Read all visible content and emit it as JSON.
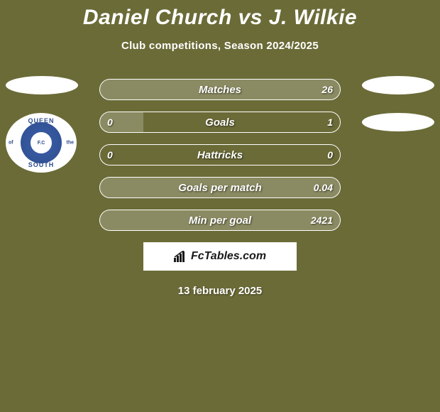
{
  "title": "Daniel Church vs J. Wilkie",
  "subtitle": "Club competitions, Season 2024/2025",
  "brand": "FcTables.com",
  "date": "13 february 2025",
  "crest": {
    "top": "QUEEN",
    "bottom": "SOUTH",
    "left": "of",
    "right": "the",
    "center": "F.C"
  },
  "colors": {
    "background": "#6b6b38",
    "text": "#ffffff",
    "bar_fill": "rgba(255,255,255,0.22)",
    "brand_bg": "#ffffff",
    "brand_text": "#1a1a1a",
    "crest_blue": "#2e4d8f"
  },
  "stats": [
    {
      "label": "Matches",
      "left_val": "",
      "right_val": "26",
      "bar_type": "full",
      "left_pct": 0,
      "right_pct": 100
    },
    {
      "label": "Goals",
      "left_val": "0",
      "right_val": "1",
      "bar_type": "left",
      "left_pct": 18,
      "right_pct": 0
    },
    {
      "label": "Hattricks",
      "left_val": "0",
      "right_val": "0",
      "bar_type": "none",
      "left_pct": 0,
      "right_pct": 0
    },
    {
      "label": "Goals per match",
      "left_val": "",
      "right_val": "0.04",
      "bar_type": "full",
      "left_pct": 0,
      "right_pct": 100
    },
    {
      "label": "Min per goal",
      "left_val": "",
      "right_val": "2421",
      "bar_type": "full",
      "left_pct": 0,
      "right_pct": 100
    }
  ]
}
